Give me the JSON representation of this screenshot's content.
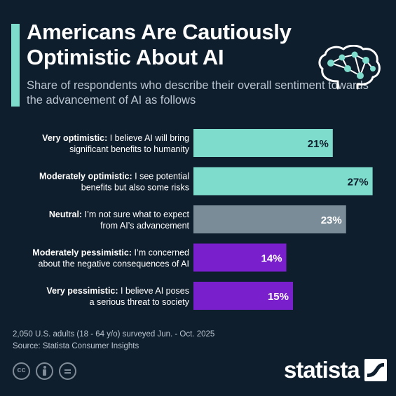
{
  "header": {
    "title": "Americans Are Cautiously Optimistic About AI",
    "subtitle": "Share of respondents who describe their overall sentiment towards the advancement of AI as follows"
  },
  "colors": {
    "background": "#0f1e2d",
    "optimistic": "#7edccc",
    "neutral": "#7b8c99",
    "pessimistic": "#7a1fcc"
  },
  "chart_data": {
    "type": "bar",
    "orientation": "horizontal",
    "xlim": [
      0,
      30
    ],
    "categories": [
      {
        "bold": "Very optimistic:",
        "line1_rest": " I believe AI will bring",
        "line2": "significant benefits to humanity"
      },
      {
        "bold": "Moderately optimistic:",
        "line1_rest": " I see potential",
        "line2": "benefits but also some risks"
      },
      {
        "bold": "Neutral:",
        "line1_rest": " I’m not sure what to expect",
        "line2": "from AI’s advancement"
      },
      {
        "bold": "Moderately pessimistic:",
        "line1_rest": " I’m concerned",
        "line2": "about the negative consequences of AI"
      },
      {
        "bold": "Very pessimistic:",
        "line1_rest": " I believe AI poses",
        "line2": "a serious threat to society"
      }
    ],
    "values": [
      21,
      27,
      23,
      14,
      15
    ],
    "value_labels": [
      "21%",
      "27%",
      "23%",
      "14%",
      "15%"
    ],
    "bar_colors": [
      "#7edccc",
      "#7edccc",
      "#7b8c99",
      "#7a1fcc",
      "#7a1fcc"
    ],
    "label_colors": [
      "#0f1e2d",
      "#0f1e2d",
      "#ffffff",
      "#ffffff",
      "#ffffff"
    ]
  },
  "footer": {
    "note": "2,050 U.S. adults (18 - 64 y/o) surveyed Jun. - Oct. 2025",
    "source": "Source: Statista Consumer Insights",
    "brand": "statista"
  },
  "icons": [
    "brain-network-icon",
    "creative-commons-icon",
    "attribution-icon",
    "no-derivatives-icon",
    "statista-logo-icon"
  ]
}
